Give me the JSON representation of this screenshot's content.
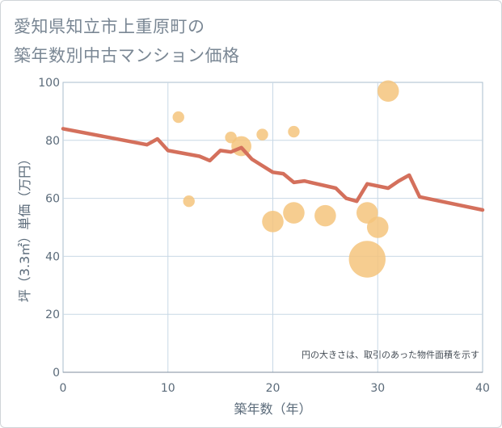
{
  "title_line1": "愛知県知立市上重原町の",
  "title_line2": "築年数別中古マンション価格",
  "chart_data": {
    "type": "scatter",
    "xlabel": "築年数（年）",
    "ylabel": "坪（3.3㎡）単価（万円）",
    "xlim": [
      0,
      40
    ],
    "ylim": [
      0,
      100
    ],
    "x_ticks": [
      0,
      10,
      20,
      30,
      40
    ],
    "y_ticks": [
      0,
      20,
      40,
      60,
      80,
      100
    ],
    "grid": true,
    "note": "円の大きさは、取引のあった物件面積を示す",
    "colors": {
      "bubble": "#f4c47c",
      "line": "#d4705c",
      "grid": "#c8d8e6",
      "frame": "#a9bccd"
    },
    "bubbles": [
      {
        "x": 11,
        "y": 88,
        "size": 1
      },
      {
        "x": 12,
        "y": 59,
        "size": 1
      },
      {
        "x": 16,
        "y": 81,
        "size": 1
      },
      {
        "x": 17,
        "y": 78,
        "size": 5
      },
      {
        "x": 19,
        "y": 82,
        "size": 1
      },
      {
        "x": 20,
        "y": 52,
        "size": 6
      },
      {
        "x": 22,
        "y": 83,
        "size": 1
      },
      {
        "x": 22,
        "y": 55,
        "size": 6
      },
      {
        "x": 25,
        "y": 54,
        "size": 6
      },
      {
        "x": 29,
        "y": 55,
        "size": 6
      },
      {
        "x": 29,
        "y": 39,
        "size": 22
      },
      {
        "x": 30,
        "y": 50,
        "size": 6
      },
      {
        "x": 31,
        "y": 97,
        "size": 6
      }
    ],
    "trend": {
      "x": [
        0,
        8,
        9,
        10,
        13,
        14,
        15,
        16,
        17,
        18,
        20,
        21,
        22,
        23,
        26,
        27,
        28,
        29,
        31,
        32,
        33,
        34,
        40
      ],
      "y": [
        84,
        78.5,
        80.5,
        76.5,
        74.5,
        73,
        76.5,
        76,
        77.5,
        73.5,
        69,
        68.5,
        65.5,
        66,
        63.5,
        60,
        59,
        65,
        63.5,
        66,
        68,
        60.5,
        56
      ]
    }
  }
}
